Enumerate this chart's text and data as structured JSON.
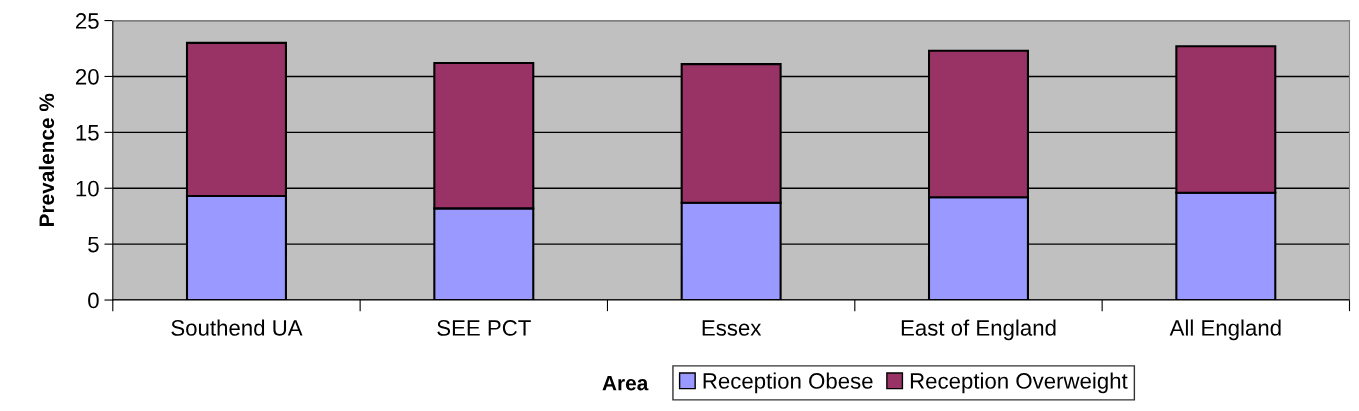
{
  "chart_data": {
    "type": "bar",
    "stacked": true,
    "xlabel": "Area",
    "ylabel": "Prevalence %",
    "categories": [
      "Southend UA",
      "SEE PCT",
      "Essex",
      "East of England",
      "All England"
    ],
    "series": [
      {
        "name": "Reception Obese",
        "color": "#9999ff",
        "values": [
          9.3,
          8.2,
          8.7,
          9.2,
          9.6
        ]
      },
      {
        "name": "Reception Overweight",
        "color": "#993366",
        "values": [
          13.7,
          13.0,
          12.4,
          13.1,
          13.1
        ]
      }
    ],
    "ylim": [
      0,
      25
    ],
    "yticks": [
      0,
      5,
      10,
      15,
      20,
      25
    ],
    "grid": "y",
    "legend": "bottom"
  }
}
